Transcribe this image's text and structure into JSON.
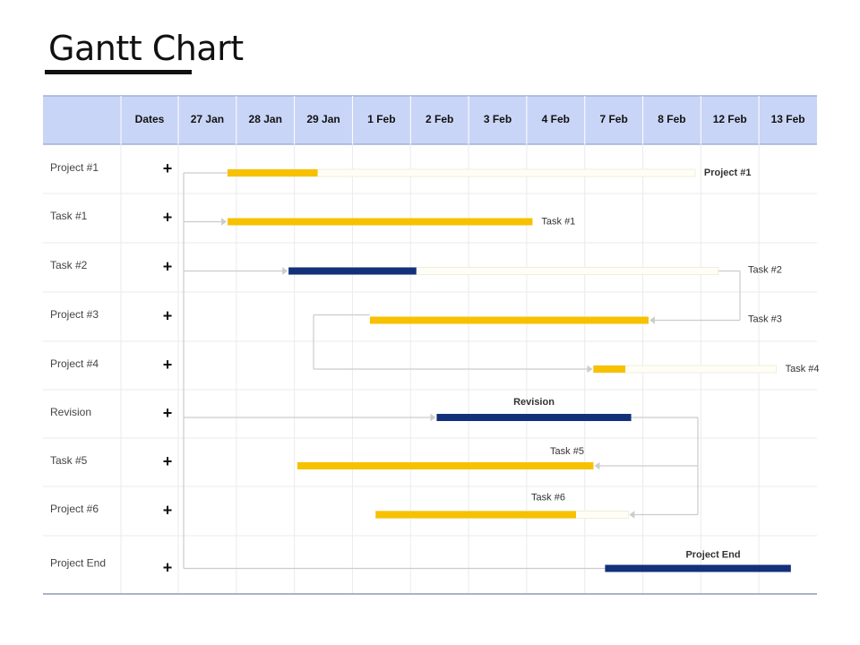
{
  "title": "Gantt Chart",
  "header": {
    "dates_label": "Dates",
    "columns": [
      "27 Jan",
      "28 Jan",
      "29 Jan",
      "1 Feb",
      "2 Feb",
      "3 Feb",
      "4 Feb",
      "7 Feb",
      "8 Feb",
      "12 Feb",
      "13 Feb"
    ]
  },
  "rows": [
    "Project #1",
    "Task #1",
    "Task #2",
    "Project #3",
    "Project #4",
    "Revision",
    "Task #5",
    "Project #6",
    "Project End"
  ],
  "plus_symbol": "+",
  "colors": {
    "header_bg": "#c9d5f6",
    "header_border": "#9fb0d8",
    "yellow": "#f7c100",
    "navy": "#13307a",
    "grid": "#ebebeb",
    "connector": "#cccccc",
    "outline": "#f0eed8",
    "bottom_border": "#a9b3c7"
  },
  "chart_data": {
    "type": "gantt",
    "title": "Gantt Chart",
    "categories": [
      "Project #1",
      "Task #1",
      "Task #2",
      "Project #3",
      "Project #4",
      "Revision",
      "Task #5",
      "Project #6",
      "Project End"
    ],
    "x_ticks": [
      "27 Jan",
      "28 Jan",
      "29 Jan",
      "1 Feb",
      "2 Feb",
      "3 Feb",
      "4 Feb",
      "7 Feb",
      "8 Feb",
      "12 Feb",
      "13 Feb"
    ],
    "tasks": [
      {
        "row": 0,
        "start": 0.85,
        "end": 2.4,
        "outline_end": 8.9,
        "color": "yellow",
        "label": "Project #1",
        "bold": true
      },
      {
        "row": 1,
        "start": 0.85,
        "end": 6.1,
        "color": "yellow",
        "label": "Task #1"
      },
      {
        "row": 2,
        "start": 1.9,
        "end": 4.1,
        "outline_end": 9.3,
        "color": "navy",
        "label": "Task #2"
      },
      {
        "row": 3,
        "start": 3.3,
        "end": 8.1,
        "color": "yellow",
        "label": "Task #3"
      },
      {
        "row": 4,
        "start": 7.15,
        "end": 7.7,
        "outline_end": 10.3,
        "color": "yellow",
        "label": "Task #4"
      },
      {
        "row": 5,
        "start": 4.45,
        "end": 7.8,
        "color": "navy",
        "label": "Revision",
        "bold": true
      },
      {
        "row": 6,
        "start": 2.05,
        "end": 7.15,
        "color": "yellow",
        "label": "Task #5"
      },
      {
        "row": 7,
        "start": 3.4,
        "end": 6.85,
        "outline_end": 7.75,
        "color": "yellow",
        "label": "Task #6"
      },
      {
        "row": 8,
        "start": 7.35,
        "end": 10.55,
        "color": "navy",
        "label": "Project End",
        "bold": true
      }
    ]
  }
}
